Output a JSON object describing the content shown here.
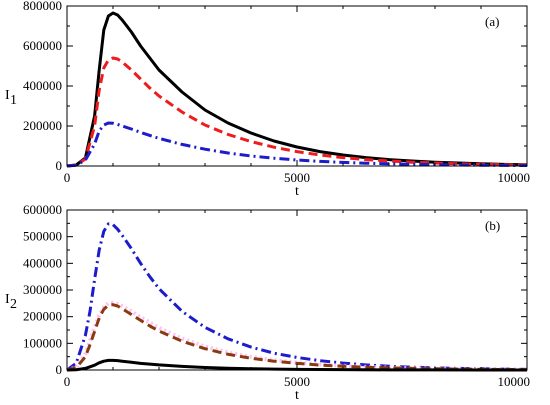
{
  "chart_data": [
    {
      "type": "line",
      "panel_label": "(a)",
      "xlabel": "t",
      "ylabel": "I",
      "ylabel_sub": "1",
      "xlim": [
        0,
        10000
      ],
      "ylim": [
        0,
        800000
      ],
      "xticks": [
        0,
        5000,
        10000
      ],
      "yticks": [
        0,
        200000,
        400000,
        600000,
        800000
      ],
      "grid": false,
      "legend": "none",
      "series": [
        {
          "color": "#000000",
          "style": "solid",
          "x": [
            0,
            200,
            400,
            600,
            700,
            800,
            900,
            1000,
            1100,
            1200,
            1400,
            1600,
            1800,
            2000,
            2500,
            3000,
            3500,
            4000,
            4500,
            5000,
            5500,
            6000,
            6500,
            7000,
            7500,
            8000,
            8500,
            9000,
            9500,
            10000
          ],
          "y": [
            0,
            5000,
            40000,
            250000,
            480000,
            680000,
            750000,
            765000,
            755000,
            730000,
            670000,
            600000,
            540000,
            480000,
            370000,
            280000,
            215000,
            165000,
            125000,
            95000,
            72000,
            55000,
            42000,
            32000,
            25000,
            19000,
            15000,
            11000,
            8000,
            6000
          ]
        },
        {
          "color": "#ee1c1c",
          "style": "dashed",
          "x": [
            0,
            200,
            400,
            600,
            700,
            800,
            900,
            1000,
            1100,
            1200,
            1400,
            1600,
            1800,
            2000,
            2500,
            3000,
            3500,
            4000,
            4500,
            5000,
            5500,
            6000,
            6500,
            7000,
            7500,
            8000,
            8500,
            9000,
            9500,
            10000
          ],
          "y": [
            0,
            5000,
            35000,
            200000,
            380000,
            490000,
            530000,
            540000,
            535000,
            520000,
            480000,
            435000,
            390000,
            350000,
            270000,
            205000,
            158000,
            122000,
            94000,
            72000,
            55000,
            42000,
            32000,
            25000,
            19000,
            15000,
            11000,
            8500,
            6500,
            5000
          ]
        },
        {
          "color": "#1c1ccc",
          "style": "dashdot",
          "x": [
            0,
            200,
            400,
            600,
            700,
            800,
            900,
            1000,
            1100,
            1200,
            1400,
            1600,
            1800,
            2000,
            2500,
            3000,
            3500,
            4000,
            4500,
            5000,
            5500,
            6000,
            6500,
            7000,
            7500,
            8000,
            8500,
            9000,
            9500,
            10000
          ],
          "y": [
            0,
            4000,
            30000,
            110000,
            175000,
            205000,
            215000,
            214000,
            208000,
            200000,
            185000,
            168000,
            153000,
            138000,
            108000,
            84000,
            65000,
            50000,
            39000,
            30000,
            23000,
            18000,
            14000,
            11000,
            8500,
            6500,
            5000,
            4000,
            3000,
            2500
          ]
        }
      ]
    },
    {
      "type": "line",
      "panel_label": "(b)",
      "xlabel": "t",
      "ylabel": "I",
      "ylabel_sub": "2",
      "xlim": [
        0,
        10000
      ],
      "ylim": [
        0,
        600000
      ],
      "xticks": [
        0,
        5000,
        10000
      ],
      "yticks": [
        0,
        100000,
        200000,
        300000,
        400000,
        500000,
        600000
      ],
      "grid": false,
      "legend": "none",
      "series": [
        {
          "color": "#1c1ccc",
          "style": "dashdot",
          "x": [
            0,
            200,
            400,
            500,
            600,
            700,
            800,
            900,
            1000,
            1100,
            1200,
            1400,
            1600,
            1800,
            2000,
            2500,
            3000,
            3500,
            4000,
            4500,
            5000,
            5500,
            6000,
            6500,
            7000,
            7500,
            8000,
            8500,
            9000,
            9500,
            10000
          ],
          "y": [
            0,
            25000,
            130000,
            220000,
            340000,
            450000,
            520000,
            548000,
            545000,
            528000,
            505000,
            455000,
            400000,
            350000,
            305000,
            220000,
            160000,
            117000,
            86000,
            63000,
            47000,
            35000,
            26000,
            19000,
            14000,
            10500,
            8000,
            6000,
            4500,
            3300,
            2500
          ]
        },
        {
          "color": "#ffb4f0",
          "style": "dotted",
          "x": [
            0,
            200,
            400,
            500,
            600,
            700,
            800,
            900,
            1000,
            1100,
            1200,
            1400,
            1600,
            1800,
            2000,
            2500,
            3000,
            3500,
            4000,
            4500,
            5000,
            5500,
            6000,
            6500,
            7000,
            7500,
            8000,
            8500,
            9000,
            9500,
            10000
          ],
          "y": [
            0,
            10000,
            60000,
            110000,
            160000,
            205000,
            235000,
            250000,
            252000,
            248000,
            240000,
            220000,
            198000,
            178000,
            158000,
            118000,
            88000,
            66000,
            49000,
            37000,
            28000,
            21000,
            16000,
            12000,
            9000,
            7000,
            5000,
            3800,
            2800,
            2100,
            1600
          ]
        },
        {
          "color": "#8b3a0f",
          "style": "dashed",
          "x": [
            0,
            200,
            400,
            500,
            600,
            700,
            800,
            900,
            1000,
            1100,
            1200,
            1400,
            1600,
            1800,
            2000,
            2500,
            3000,
            3500,
            4000,
            4500,
            5000,
            5500,
            6000,
            6500,
            7000,
            7500,
            8000,
            8500,
            9000,
            9500,
            10000
          ],
          "y": [
            0,
            8000,
            50000,
            95000,
            145000,
            195000,
            228000,
            243000,
            245000,
            240000,
            230000,
            208000,
            186000,
            165000,
            146000,
            108000,
            80000,
            59000,
            44000,
            33000,
            25000,
            18500,
            14000,
            10500,
            8000,
            6000,
            4500,
            3400,
            2500,
            1900,
            1400
          ]
        },
        {
          "color": "#000000",
          "style": "solid",
          "x": [
            0,
            200,
            400,
            600,
            700,
            800,
            900,
            1000,
            1100,
            1200,
            1400,
            1600,
            1800,
            2000,
            2500,
            3000,
            3500,
            4000,
            4500,
            5000,
            6000,
            7000,
            8000,
            9000,
            10000
          ],
          "y": [
            0,
            1000,
            6000,
            18000,
            27000,
            33000,
            36000,
            36000,
            35000,
            33000,
            29000,
            25000,
            22000,
            19000,
            13500,
            9500,
            6800,
            4800,
            3400,
            2400,
            1200,
            600,
            300,
            150,
            80
          ]
        }
      ]
    }
  ]
}
